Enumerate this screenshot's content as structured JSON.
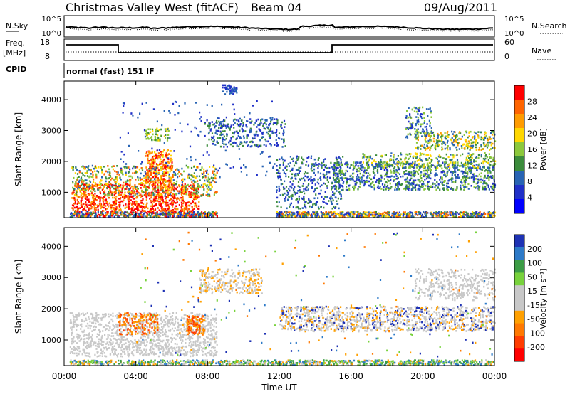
{
  "header": {
    "title": "Christmas Valley West (fitACF)",
    "beam": "Beam 04",
    "date": "09/Aug/2011"
  },
  "noise_panel": {
    "left_label": "N.Sky",
    "right_label": "N.Search",
    "left_ticks": [
      "10^5",
      "10^0"
    ],
    "right_ticks": [
      "10^5",
      "10^0"
    ]
  },
  "freq_panel": {
    "left_label_1": "Freq.",
    "left_label_2": "[MHz]",
    "right_label": "Nave",
    "left_ticks": [
      "18",
      "8"
    ],
    "right_ticks": [
      "60",
      "0"
    ]
  },
  "cpid": {
    "label": "CPID",
    "mode": "normal (fast) 151 IF"
  },
  "chart_data": [
    {
      "type": "heatmap",
      "panel": "power",
      "ylabel": "Slant Range [km]",
      "y_ticks": [
        "4000",
        "3000",
        "2000",
        "1000"
      ],
      "y_tick_values": [
        4000,
        3000,
        2000,
        1000
      ],
      "ylim": [
        180,
        4600
      ],
      "colorbar_label": "Power [dB]",
      "colorbar_ticks": [
        "28",
        "24",
        "20",
        "16",
        "12",
        "8",
        "4"
      ],
      "colorbar_colors": [
        "#ff0000",
        "#ff6400",
        "#ff9c00",
        "#ffd700",
        "#8cc83c",
        "#3c8c3c",
        "#2864b4",
        "#2030c8",
        "#0000ff"
      ]
    },
    {
      "type": "heatmap",
      "panel": "velocity",
      "ylabel": "Slant Range [km]",
      "y_ticks": [
        "4000",
        "3000",
        "2000",
        "1000"
      ],
      "y_tick_values": [
        4000,
        3000,
        2000,
        1000
      ],
      "ylim": [
        180,
        4600
      ],
      "colorbar_label": "Velocity [m s⁻¹]",
      "colorbar_ticks": [
        "200",
        "100",
        "50",
        "15",
        "-15",
        "-50",
        "-100",
        "-200"
      ],
      "colorbar_colors": [
        "#1e32b4",
        "#2d7ac8",
        "#3c9c46",
        "#78d23c",
        "#c8c8c8",
        "#c8c8c8",
        "#ffa000",
        "#ff7800",
        "#ff3c00",
        "#ff0000"
      ]
    }
  ],
  "x_axis": {
    "title": "Time UT",
    "ticks": [
      "00:00",
      "04:00",
      "08:00",
      "12:00",
      "16:00",
      "20:00",
      "00:00"
    ],
    "tick_hours": [
      0,
      4,
      8,
      12,
      16,
      20,
      24
    ],
    "xlim_hours": [
      0,
      24
    ]
  }
}
